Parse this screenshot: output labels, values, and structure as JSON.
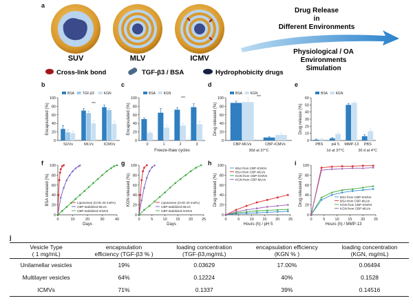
{
  "panel_labels": [
    "a",
    "b",
    "c",
    "d",
    "e",
    "f",
    "g",
    "h",
    "i",
    "j"
  ],
  "schematic": {
    "particles": [
      "SUV",
      "MLV",
      "ICMV"
    ],
    "legend": [
      "Cross-link bond",
      "TGF-β3 / BSA",
      "Hydrophobicity drugs"
    ],
    "arrow_top": [
      "Drug Release",
      "in",
      "Different Environments"
    ],
    "arrow_bottom": [
      "Physiological / OA",
      "Environments",
      "Simulation"
    ],
    "colors": {
      "shell": "#d9a23c",
      "core": "#3a4a8a",
      "arrow": "#3b8fd0"
    }
  },
  "chart_data": [
    {
      "id": "b",
      "type": "bar",
      "ylabel": "Encapsulated (%)",
      "ylim": [
        0,
        100
      ],
      "yticks": [
        0,
        20,
        40,
        60,
        80,
        100
      ],
      "categories": [
        "SUVs",
        "MLVs",
        "ICMVs"
      ],
      "series": [
        {
          "name": "BSA",
          "color": "#2f7fc1",
          "values": [
            27,
            70,
            78
          ],
          "err": [
            8,
            5,
            5
          ]
        },
        {
          "name": "TGF-β3",
          "color": "#9cc8ea",
          "values": [
            19,
            64,
            71
          ],
          "err": [
            6,
            5,
            4
          ]
        },
        {
          "name": "KGN",
          "color": "#c9e0f2",
          "values": [
            17,
            40,
            39
          ],
          "err": [
            5,
            7,
            7
          ]
        }
      ],
      "annotations": [
        "***"
      ]
    },
    {
      "id": "c",
      "type": "bar",
      "ylabel": "Encapsulated (%)",
      "xlabel": "Freeze-thaw cycles",
      "ylim": [
        0,
        100
      ],
      "yticks": [
        0,
        20,
        40,
        60,
        80,
        100
      ],
      "categories": [
        "0",
        "1",
        "2",
        "3"
      ],
      "series": [
        {
          "name": "BSA",
          "color": "#2f7fc1",
          "values": [
            50,
            65,
            72,
            78
          ],
          "err": [
            3,
            10,
            5,
            8
          ]
        },
        {
          "name": "KGN",
          "color": "#c9e0f2",
          "values": [
            18,
            30,
            35,
            38
          ],
          "err": [
            4,
            6,
            5,
            7
          ]
        }
      ],
      "annotations": [
        "***"
      ]
    },
    {
      "id": "d",
      "type": "bar",
      "ylabel": "Drug released (%)",
      "ylim": [
        0,
        100
      ],
      "yticks": [
        0,
        20,
        40,
        60,
        80,
        100
      ],
      "categories": [
        "CBP-MLVs",
        "CBP-ICMVs"
      ],
      "series": [
        {
          "name": "BSA",
          "color": "#2f7fc1",
          "values": [
            88,
            7
          ],
          "err": [
            4,
            2
          ]
        },
        {
          "name": "KGN",
          "color": "#c9e0f2",
          "values": [
            90,
            13
          ],
          "err": [
            10,
            5
          ]
        }
      ],
      "group_label": "30d at 37°C",
      "annotations": [
        "***"
      ]
    },
    {
      "id": "e",
      "type": "bar",
      "ylabel": "Drug release (%)",
      "ylim": [
        0,
        60
      ],
      "yticks": [
        0,
        10,
        20,
        30,
        40,
        50,
        60
      ],
      "categories": [
        "PBS",
        "pH 5",
        "MMP-13",
        "PBS"
      ],
      "series": [
        {
          "name": "BSA",
          "color": "#2f7fc1",
          "values": [
            1,
            3,
            50,
            6
          ],
          "err": [
            1,
            1,
            2,
            2
          ]
        },
        {
          "name": "KGN",
          "color": "#c9e0f2",
          "values": [
            2,
            9,
            53,
            13
          ],
          "err": [
            1,
            2,
            2,
            3
          ]
        }
      ],
      "group_labels": [
        "1d at 37°C",
        "30 d at 4°C"
      ]
    },
    {
      "id": "f",
      "type": "line",
      "ylabel": "BSA released (%)",
      "xlabel": "Days",
      "xlim": [
        0,
        40
      ],
      "ylim": [
        0,
        100
      ],
      "xticks": [
        0,
        10,
        20,
        30,
        40
      ],
      "yticks": [
        0,
        20,
        40,
        60,
        80,
        100
      ],
      "series": [
        {
          "name": "Liposomes (CHO 20 mol%)",
          "color": "#d93030",
          "marker": "square",
          "x": [
            0,
            0.5,
            1,
            1.5,
            2,
            3,
            4
          ],
          "y": [
            0,
            40,
            70,
            85,
            92,
            98,
            100
          ]
        },
        {
          "name": "CBP-stabilized MLVs",
          "color": "#6a52c2",
          "marker": "triangle",
          "x": [
            0,
            2,
            4,
            6,
            8,
            10,
            12,
            14,
            15
          ],
          "y": [
            0,
            35,
            55,
            70,
            80,
            88,
            94,
            98,
            100
          ]
        },
        {
          "name": "CBP-stabilized ICMVs",
          "color": "#3aa83a",
          "marker": "circle",
          "x": [
            0,
            3,
            6,
            9,
            12,
            15,
            18,
            21,
            24,
            27,
            30,
            33,
            36,
            38,
            40
          ],
          "y": [
            0,
            8,
            16,
            24,
            32,
            40,
            48,
            56,
            64,
            72,
            80,
            88,
            94,
            98,
            100
          ]
        }
      ]
    },
    {
      "id": "g",
      "type": "line",
      "ylabel": "KGN released (%)",
      "xlabel": "Days",
      "xlim": [
        0,
        25
      ],
      "ylim": [
        0,
        100
      ],
      "xticks": [
        0,
        5,
        10,
        15,
        20,
        25
      ],
      "yticks": [
        0,
        20,
        40,
        60,
        80,
        100
      ],
      "series": [
        {
          "name": "Liposomes (CHO 20 mol%)",
          "color": "#d93030",
          "marker": "square",
          "x": [
            0,
            0.5,
            1,
            1.5,
            2,
            3
          ],
          "y": [
            0,
            40,
            70,
            88,
            95,
            100
          ]
        },
        {
          "name": "CBP-stabilized MLVs",
          "color": "#6a52c2",
          "marker": "triangle",
          "x": [
            0,
            1,
            2,
            3,
            4,
            5,
            6
          ],
          "y": [
            0,
            30,
            55,
            75,
            88,
            96,
            100
          ]
        },
        {
          "name": "CBP-stabilized ICMVs",
          "color": "#3aa83a",
          "marker": "circle",
          "x": [
            0,
            2,
            4,
            6,
            8,
            10,
            12,
            14,
            16,
            18,
            20,
            22,
            24
          ],
          "y": [
            0,
            10,
            18,
            27,
            36,
            45,
            55,
            64,
            72,
            80,
            88,
            95,
            100
          ]
        }
      ]
    },
    {
      "id": "h",
      "type": "line",
      "ylabel": "Drug released (%)",
      "xlabel": "Hours (h) / pH 5",
      "xlim": [
        0,
        25
      ],
      "ylim": [
        0,
        100
      ],
      "xticks": [
        0,
        5,
        10,
        15,
        20,
        25
      ],
      "yticks": [
        0,
        20,
        40,
        60,
        80,
        100
      ],
      "series": [
        {
          "name": "BSA from CBP-ICMVs",
          "color": "#3b8fd0",
          "marker": "circle",
          "x": [
            0,
            4,
            8,
            12,
            16,
            20,
            24
          ],
          "y": [
            0,
            2,
            3,
            4,
            5,
            6,
            7
          ]
        },
        {
          "name": "BSA from CBP-MLVs",
          "color": "#d93030",
          "marker": "square",
          "x": [
            0,
            4,
            8,
            12,
            16,
            20,
            24
          ],
          "y": [
            0,
            10,
            18,
            25,
            30,
            35,
            40
          ]
        },
        {
          "name": "KGN from CBP-ICMVs",
          "color": "#3aa83a",
          "marker": "triangle",
          "x": [
            0,
            4,
            8,
            12,
            16,
            20,
            24
          ],
          "y": [
            0,
            4,
            6,
            8,
            9,
            10,
            11
          ]
        },
        {
          "name": "KGN from CBP-MLVs",
          "color": "#9b59b6",
          "marker": "diamond",
          "x": [
            0,
            4,
            8,
            12,
            16,
            20,
            24
          ],
          "y": [
            0,
            6,
            10,
            13,
            16,
            18,
            20
          ]
        }
      ]
    },
    {
      "id": "i",
      "type": "line",
      "ylabel": "Drug released (%)",
      "xlabel": "Hours (h) / MMP-13",
      "xlim": [
        0,
        25
      ],
      "ylim": [
        0,
        100
      ],
      "xticks": [
        0,
        5,
        10,
        15,
        20,
        25
      ],
      "yticks": [
        0,
        20,
        40,
        60,
        80,
        100
      ],
      "series": [
        {
          "name": "BSA from CBP-ICMVs",
          "color": "#3b8fd0",
          "marker": "circle",
          "x": [
            0,
            4,
            8,
            12,
            16,
            20,
            24
          ],
          "y": [
            0,
            30,
            40,
            45,
            48,
            50,
            52
          ]
        },
        {
          "name": "BSA from CBP-MLVs",
          "color": "#d93030",
          "marker": "square",
          "x": [
            0,
            4,
            8,
            12,
            16,
            20,
            24
          ],
          "y": [
            0,
            95,
            97,
            98,
            98,
            99,
            99
          ]
        },
        {
          "name": "KGN from CBP-ICMVs",
          "color": "#3aa83a",
          "marker": "triangle",
          "x": [
            0,
            4,
            8,
            12,
            16,
            20,
            24
          ],
          "y": [
            0,
            35,
            45,
            50,
            52,
            55,
            58
          ]
        },
        {
          "name": "KGN from CBP-MLVs",
          "color": "#9b59b6",
          "marker": "diamond",
          "x": [
            0,
            4,
            8,
            12,
            16,
            20,
            24
          ],
          "y": [
            0,
            90,
            92,
            93,
            94,
            94,
            95
          ]
        }
      ]
    }
  ],
  "table": {
    "headers": [
      "Vesicle Type\n( 1 mg/mL)",
      "encapsulation\nefficiency (TGF-β3 % )",
      "loading concentration\n(TGF-β3,mg/mL)",
      "encapsulation efficiency\n(KGN % )",
      "loading concentration\n(KGN, mg/mL)"
    ],
    "rows": [
      [
        "Unilamellar vesicles",
        "19%",
        "0.03629",
        "17.00%",
        "0.06494"
      ],
      [
        "Multilayer vesicles",
        "64%",
        "0.12224",
        "40%",
        "0.1528"
      ],
      [
        "ICMVs",
        "71%",
        "0.1337",
        "39%",
        "0.14516"
      ]
    ]
  }
}
